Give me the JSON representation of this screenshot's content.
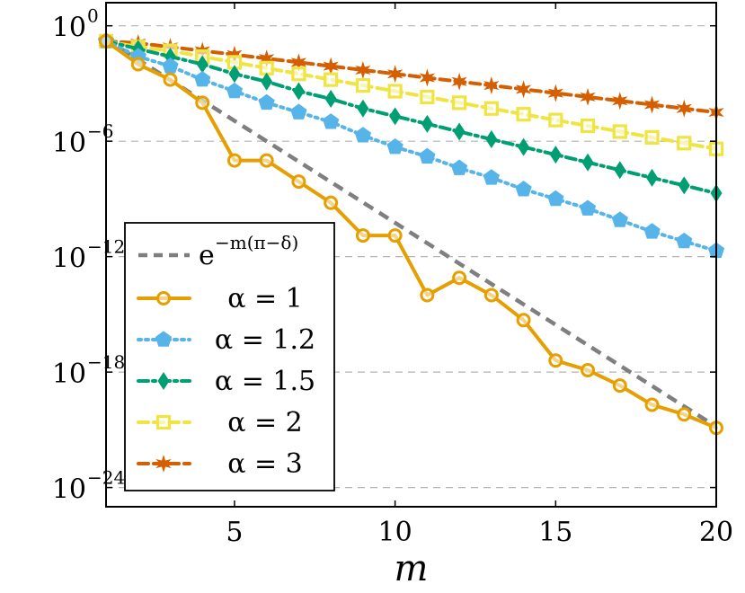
{
  "chart_data": {
    "type": "line",
    "title": "",
    "xlabel": "m",
    "ylabel": "",
    "xlim": [
      1,
      20
    ],
    "ylim": [
      -25,
      1.2
    ],
    "y_scale": "log10",
    "x_ticks": [
      5,
      10,
      15,
      20
    ],
    "y_ticks": [
      {
        "exp": 0,
        "base": "10",
        "sup": "0"
      },
      {
        "exp": -6,
        "base": "10",
        "sup": "−6"
      },
      {
        "exp": -12,
        "base": "10",
        "sup": "−12"
      },
      {
        "exp": -18,
        "base": "10",
        "sup": "−18"
      },
      {
        "exp": -24,
        "base": "10",
        "sup": "−24"
      }
    ],
    "grid": "horizontal dashed",
    "legend_placement": "lower-left",
    "x": [
      1,
      2,
      3,
      4,
      5,
      6,
      7,
      8,
      9,
      10,
      11,
      12,
      13,
      14,
      15,
      16,
      17,
      18,
      19,
      20
    ],
    "reference": {
      "legend_base": "e",
      "legend_sup": "−m(π−δ)",
      "color": "#7f7f7f",
      "log10_values": [
        -0.7,
        -1.76,
        -2.82,
        -3.88,
        -4.94,
        -6.0,
        -7.06,
        -8.12,
        -9.18,
        -10.24,
        -11.3,
        -12.36,
        -13.42,
        -14.48,
        -15.54,
        -16.6,
        -17.66,
        -18.72,
        -19.78,
        -20.84
      ]
    },
    "series": [
      {
        "name": "α = 1",
        "color": "#e69f00",
        "marker": "circle",
        "dash": "solid",
        "log10_values": [
          -0.8,
          -2.0,
          -2.8,
          -4.0,
          -7.0,
          -7.0,
          -8.1,
          -9.2,
          -10.9,
          -10.9,
          -14.0,
          -13.1,
          -14.0,
          -15.3,
          -17.4,
          -17.9,
          -18.7,
          -19.7,
          -20.2,
          -20.9
        ]
      },
      {
        "name": "α = 1.2",
        "color": "#56b4e9",
        "marker": "pentagon",
        "dash": "dotted",
        "log10_values": [
          -0.8,
          -1.6,
          -2.1,
          -2.8,
          -3.4,
          -4.0,
          -4.5,
          -5.0,
          -5.7,
          -6.3,
          -6.8,
          -7.4,
          -7.9,
          -8.5,
          -9.0,
          -9.5,
          -10.1,
          -10.7,
          -11.2,
          -11.7
        ]
      },
      {
        "name": "α = 1.5",
        "color": "#009e73",
        "marker": "diamond",
        "dash": "dashdot",
        "log10_values": [
          -0.8,
          -1.2,
          -1.6,
          -2.0,
          -2.5,
          -2.9,
          -3.4,
          -3.8,
          -4.3,
          -4.7,
          -5.1,
          -5.5,
          -5.9,
          -6.3,
          -6.7,
          -7.1,
          -7.5,
          -7.9,
          -8.3,
          -8.7
        ]
      },
      {
        "name": "α = 2",
        "color": "#f0e442",
        "marker": "square",
        "dash": "dashed",
        "log10_values": [
          -0.8,
          -1.1,
          -1.3,
          -1.6,
          -1.9,
          -2.2,
          -2.5,
          -2.8,
          -3.1,
          -3.4,
          -3.7,
          -4.0,
          -4.3,
          -4.6,
          -4.9,
          -5.2,
          -5.5,
          -5.8,
          -6.1,
          -6.4
        ]
      },
      {
        "name": "α = 3",
        "color": "#d55e00",
        "marker": "star",
        "dash": "dashed",
        "log10_values": [
          -0.8,
          -0.9,
          -1.1,
          -1.3,
          -1.5,
          -1.7,
          -1.9,
          -2.1,
          -2.3,
          -2.5,
          -2.7,
          -2.9,
          -3.1,
          -3.3,
          -3.5,
          -3.7,
          -3.9,
          -4.1,
          -4.3,
          -4.5
        ]
      }
    ]
  }
}
